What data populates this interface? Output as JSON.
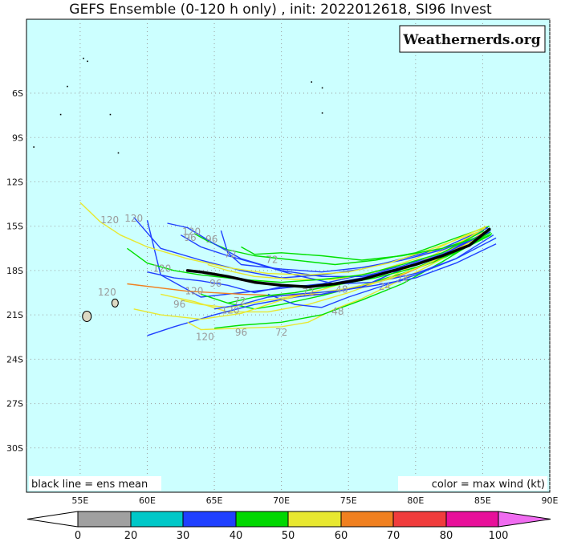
{
  "title": "GEFS Ensemble (0-120 h only) , init: 2022012618, SI96 Invest",
  "brand": "Weathernerds.org",
  "notes": {
    "left": "black line = ens mean",
    "right": "color = max wind (kt)"
  },
  "map": {
    "lon_range": [
      51,
      90
    ],
    "lat_range": [
      -33,
      -1
    ],
    "background": "#ccffff",
    "land_color": "#ddd9c3",
    "lat_ticks": [
      {
        "lat": -6,
        "label": "6S"
      },
      {
        "lat": -9,
        "label": "9S"
      },
      {
        "lat": -12,
        "label": "12S"
      },
      {
        "lat": -15,
        "label": "15S"
      },
      {
        "lat": -18,
        "label": "18S"
      },
      {
        "lat": -21,
        "label": "21S"
      },
      {
        "lat": -24,
        "label": "24S"
      },
      {
        "lat": -27,
        "label": "27S"
      },
      {
        "lat": -30,
        "label": "30S"
      }
    ],
    "lon_ticks": [
      {
        "lon": 55,
        "label": "55E"
      },
      {
        "lon": 60,
        "label": "60E"
      },
      {
        "lon": 65,
        "label": "65E"
      },
      {
        "lon": 70,
        "label": "70E"
      },
      {
        "lon": 75,
        "label": "75E"
      },
      {
        "lon": 80,
        "label": "80E"
      },
      {
        "lon": 85,
        "label": "85E"
      },
      {
        "lon": 90,
        "label": "90E"
      }
    ]
  },
  "chart_data": {
    "type": "scatter",
    "mean_track": {
      "color": "#000000",
      "points": [
        [
          85.5,
          -15.2
        ],
        [
          84,
          -16.3
        ],
        [
          82,
          -17.0
        ],
        [
          80,
          -17.6
        ],
        [
          78,
          -18.1
        ],
        [
          76,
          -18.6
        ],
        [
          74,
          -18.9
        ],
        [
          72,
          -19.1
        ],
        [
          70,
          -19.0
        ],
        [
          68,
          -18.8
        ],
        [
          66,
          -18.4
        ],
        [
          64,
          -18.1
        ],
        [
          63,
          -18.0
        ]
      ]
    },
    "members": [
      {
        "color": "#00e000",
        "points": [
          [
            85.5,
            -15.0
          ],
          [
            83,
            -15.8
          ],
          [
            80,
            -16.8
          ],
          [
            77,
            -17.3
          ],
          [
            74,
            -17.6
          ],
          [
            71,
            -17.3
          ],
          [
            68,
            -17.0
          ],
          [
            66,
            -16.6
          ],
          [
            64.5,
            -16.0
          ],
          [
            63.5,
            -15.5
          ]
        ]
      },
      {
        "color": "#2040ff",
        "points": [
          [
            85.4,
            -15.1
          ],
          [
            82,
            -16.5
          ],
          [
            79,
            -17.2
          ],
          [
            76,
            -17.9
          ],
          [
            73,
            -18.3
          ],
          [
            70,
            -18.5
          ],
          [
            67,
            -18.0
          ],
          [
            64,
            -17.3
          ],
          [
            61,
            -16.5
          ],
          [
            59,
            -14.4
          ]
        ]
      },
      {
        "color": "#2040ff",
        "points": [
          [
            85.6,
            -15.3
          ],
          [
            82,
            -16.8
          ],
          [
            79,
            -17.7
          ],
          [
            76,
            -18.3
          ],
          [
            73,
            -18.9
          ],
          [
            70,
            -19.2
          ],
          [
            67,
            -19.5
          ],
          [
            64,
            -19.8
          ],
          [
            61,
            -18.3
          ],
          [
            60,
            -14.6
          ]
        ]
      },
      {
        "color": "#e8e830",
        "points": [
          [
            85.3,
            -15.0
          ],
          [
            83,
            -15.9
          ],
          [
            80,
            -17.2
          ],
          [
            77,
            -18.1
          ],
          [
            74,
            -18.6
          ],
          [
            71,
            -18.6
          ],
          [
            68,
            -18.4
          ],
          [
            66,
            -18.0
          ],
          [
            64.5,
            -17.6
          ]
        ]
      },
      {
        "color": "#00e000",
        "points": [
          [
            85.7,
            -15.5
          ],
          [
            82,
            -17.2
          ],
          [
            79,
            -18.2
          ],
          [
            76,
            -19.0
          ],
          [
            73,
            -19.7
          ],
          [
            70,
            -20.3
          ],
          [
            68,
            -20.6
          ],
          [
            66,
            -20.2
          ],
          [
            64,
            -19.6
          ]
        ]
      },
      {
        "color": "#f08020",
        "points": [
          [
            85.5,
            -15.2
          ],
          [
            82,
            -17.1
          ],
          [
            79,
            -18.3
          ],
          [
            76,
            -19.1
          ],
          [
            73,
            -19.6
          ],
          [
            70,
            -19.7
          ],
          [
            67,
            -19.6
          ],
          [
            63,
            -19.4
          ],
          [
            58.5,
            -18.9
          ]
        ]
      },
      {
        "color": "#e8e830",
        "points": [
          [
            84.8,
            -15.4
          ],
          [
            81,
            -17.1
          ],
          [
            78,
            -18.5
          ],
          [
            75,
            -19.5
          ],
          [
            72,
            -20.3
          ],
          [
            69,
            -20.8
          ],
          [
            66,
            -20.8
          ],
          [
            63.5,
            -20.1
          ],
          [
            61,
            -19.6
          ]
        ]
      },
      {
        "color": "#2040ff",
        "points": [
          [
            85.3,
            -15.1
          ],
          [
            82,
            -16.9
          ],
          [
            79,
            -17.9
          ],
          [
            76,
            -19.1
          ],
          [
            73,
            -19.6
          ],
          [
            71,
            -19.8
          ],
          [
            68,
            -20.3
          ],
          [
            65,
            -21.0
          ],
          [
            62,
            -21.8
          ],
          [
            60,
            -22.4
          ]
        ]
      },
      {
        "color": "#e8e830",
        "points": [
          [
            85.5,
            -15.3
          ],
          [
            82,
            -17.2
          ],
          [
            79,
            -18.6
          ],
          [
            76,
            -19.9
          ],
          [
            74,
            -20.6
          ],
          [
            72,
            -21.5
          ],
          [
            70,
            -21.8
          ],
          [
            67,
            -21.9
          ],
          [
            64,
            -22.0
          ],
          [
            63,
            -21.5
          ]
        ]
      },
      {
        "color": "#00e000",
        "points": [
          [
            85.6,
            -15.4
          ],
          [
            82,
            -17.4
          ],
          [
            79,
            -18.9
          ],
          [
            76,
            -20.0
          ],
          [
            73,
            -21.0
          ],
          [
            70,
            -21.5
          ],
          [
            67,
            -21.7
          ],
          [
            65,
            -21.9
          ]
        ]
      },
      {
        "color": "#2040ff",
        "points": [
          [
            86,
            -15.8
          ],
          [
            83,
            -17.2
          ],
          [
            80,
            -18.3
          ],
          [
            77,
            -19.2
          ],
          [
            75,
            -19.8
          ],
          [
            73,
            -20.5
          ],
          [
            71,
            -20.3
          ],
          [
            69,
            -19.6
          ]
        ]
      },
      {
        "color": "#e8e830",
        "points": [
          [
            85.2,
            -15.1
          ],
          [
            82,
            -16.9
          ],
          [
            79,
            -17.8
          ],
          [
            76,
            -18.5
          ],
          [
            73,
            -19.3
          ],
          [
            70,
            -20.0
          ],
          [
            67,
            -20.9
          ],
          [
            64,
            -21.3
          ],
          [
            61,
            -21.0
          ],
          [
            59,
            -20.6
          ]
        ]
      },
      {
        "color": "#00e000",
        "points": [
          [
            85.6,
            -15.6
          ],
          [
            83,
            -16.8
          ],
          [
            80,
            -17.8
          ],
          [
            77,
            -18.5
          ],
          [
            74,
            -19.0
          ],
          [
            71,
            -19.5
          ],
          [
            68,
            -19.8
          ],
          [
            66,
            -20.2
          ]
        ]
      },
      {
        "color": "#2040ff",
        "points": [
          [
            85.8,
            -15.6
          ],
          [
            83,
            -17.2
          ],
          [
            80,
            -18.2
          ],
          [
            77,
            -18.8
          ],
          [
            74,
            -18.9
          ],
          [
            71,
            -18.3
          ],
          [
            68,
            -17.5
          ],
          [
            66,
            -17.0
          ],
          [
            64,
            -16.4
          ],
          [
            62.5,
            -15.6
          ]
        ]
      },
      {
        "color": "#2040ff",
        "points": [
          [
            85.4,
            -15.4
          ],
          [
            82,
            -16.9
          ],
          [
            79,
            -17.8
          ],
          [
            76,
            -18.4
          ],
          [
            73,
            -18.4
          ],
          [
            70,
            -18.0
          ],
          [
            67,
            -17.2
          ],
          [
            65,
            -16.2
          ],
          [
            63,
            -15.1
          ],
          [
            61.5,
            -14.8
          ]
        ]
      },
      {
        "color": "#2040ff",
        "points": [
          [
            85.3,
            -15.5
          ],
          [
            82,
            -16.6
          ],
          [
            79,
            -17.3
          ],
          [
            76,
            -17.8
          ],
          [
            73,
            -18.1
          ],
          [
            70,
            -17.9
          ],
          [
            67,
            -17.6
          ],
          [
            66,
            -16.8
          ],
          [
            65.5,
            -15.3
          ]
        ]
      },
      {
        "color": "#00e000",
        "points": [
          [
            85.1,
            -15.3
          ],
          [
            82,
            -16.8
          ],
          [
            79,
            -17.6
          ],
          [
            76,
            -18.3
          ],
          [
            73,
            -18.6
          ],
          [
            70,
            -18.8
          ],
          [
            67,
            -18.6
          ],
          [
            64,
            -18.3
          ],
          [
            62,
            -18.0
          ],
          [
            60,
            -17.5
          ],
          [
            58.5,
            -16.5
          ]
        ]
      },
      {
        "color": "#e8e830",
        "points": [
          [
            84.6,
            -15.4
          ],
          [
            81,
            -16.6
          ],
          [
            78,
            -17.5
          ],
          [
            75,
            -18.1
          ],
          [
            72,
            -18.3
          ],
          [
            69,
            -18.2
          ],
          [
            66,
            -17.8
          ],
          [
            63,
            -17.2
          ],
          [
            60,
            -16.4
          ],
          [
            58,
            -15.6
          ],
          [
            56.5,
            -14.7
          ],
          [
            55,
            -13.4
          ]
        ]
      },
      {
        "color": "#2040ff",
        "points": [
          [
            85.5,
            -15.4
          ],
          [
            82,
            -16.9
          ],
          [
            79,
            -17.8
          ],
          [
            76,
            -18.5
          ],
          [
            73,
            -19.0
          ],
          [
            70,
            -19.1
          ],
          [
            68,
            -19.5
          ],
          [
            66,
            -19.0
          ],
          [
            64,
            -18.7
          ],
          [
            62,
            -18.5
          ],
          [
            60,
            -18.1
          ]
        ]
      },
      {
        "color": "#e8e830",
        "points": [
          [
            84.9,
            -15.7
          ],
          [
            81,
            -17.5
          ],
          [
            78,
            -18.6
          ],
          [
            75,
            -19.2
          ],
          [
            72,
            -19.6
          ],
          [
            69,
            -20.0
          ],
          [
            66,
            -20.5
          ],
          [
            64,
            -20.3
          ],
          [
            62.5,
            -20.0
          ]
        ]
      },
      {
        "color": "#00e000",
        "points": [
          [
            85.2,
            -15.6
          ],
          [
            82,
            -16.5
          ],
          [
            79,
            -17.0
          ],
          [
            76,
            -17.3
          ],
          [
            73,
            -17.0
          ],
          [
            70,
            -16.8
          ],
          [
            68,
            -16.9
          ],
          [
            67,
            -16.4
          ]
        ]
      },
      {
        "color": "#2040ff",
        "points": [
          [
            86,
            -16.2
          ],
          [
            83,
            -17.5
          ],
          [
            80,
            -18.5
          ],
          [
            77,
            -19.0
          ],
          [
            74,
            -19.4
          ],
          [
            71,
            -19.6
          ],
          [
            69,
            -19.8
          ],
          [
            67,
            -20.3
          ],
          [
            65,
            -20.6
          ]
        ]
      }
    ],
    "hour_labels": [
      {
        "text": "120",
        "lon": 57.2,
        "lat": -14.8
      },
      {
        "text": "120",
        "lon": 59.0,
        "lat": -14.7
      },
      {
        "text": "120",
        "lon": 63.3,
        "lat": -15.6
      },
      {
        "text": "96",
        "lon": 63.2,
        "lat": -16.0
      },
      {
        "text": "96",
        "lon": 64.8,
        "lat": -16.1
      },
      {
        "text": "72",
        "lon": 66.2,
        "lat": -17.1
      },
      {
        "text": "72",
        "lon": 69.3,
        "lat": -17.5
      },
      {
        "text": "120",
        "lon": 61.1,
        "lat": -18.1
      },
      {
        "text": "96",
        "lon": 65.1,
        "lat": -19.1
      },
      {
        "text": "120",
        "lon": 63.5,
        "lat": -19.6
      },
      {
        "text": "120",
        "lon": 57.0,
        "lat": -19.7
      },
      {
        "text": "96",
        "lon": 62.4,
        "lat": -20.5
      },
      {
        "text": "72",
        "lon": 66.9,
        "lat": -20.3
      },
      {
        "text": "120",
        "lon": 66.2,
        "lat": -20.9
      },
      {
        "text": "72",
        "lon": 72.0,
        "lat": -19.7
      },
      {
        "text": "48",
        "lon": 74.5,
        "lat": -19.5
      },
      {
        "text": "24",
        "lon": 77.7,
        "lat": -19.3
      },
      {
        "text": "24",
        "lon": 79.0,
        "lat": -18.8
      },
      {
        "text": "48",
        "lon": 74.2,
        "lat": -21.0
      },
      {
        "text": "72",
        "lon": 70.0,
        "lat": -22.4
      },
      {
        "text": "96",
        "lon": 67.0,
        "lat": -22.4
      },
      {
        "text": "120",
        "lon": 64.3,
        "lat": -22.7
      }
    ]
  },
  "islands": [
    {
      "name": "reunion",
      "lon": 55.5,
      "lat": -21.1
    },
    {
      "name": "mauritius",
      "lon": 57.6,
      "lat": -20.2
    }
  ],
  "colorbar": {
    "labels": [
      "0",
      "20",
      "30",
      "40",
      "50",
      "60",
      "70",
      "80",
      "100"
    ],
    "colors": [
      "#a0a0a0",
      "#00c8c8",
      "#2040ff",
      "#00d800",
      "#e8e830",
      "#f08020",
      "#f03c3c",
      "#e8109a",
      "#f06cf0"
    ]
  }
}
